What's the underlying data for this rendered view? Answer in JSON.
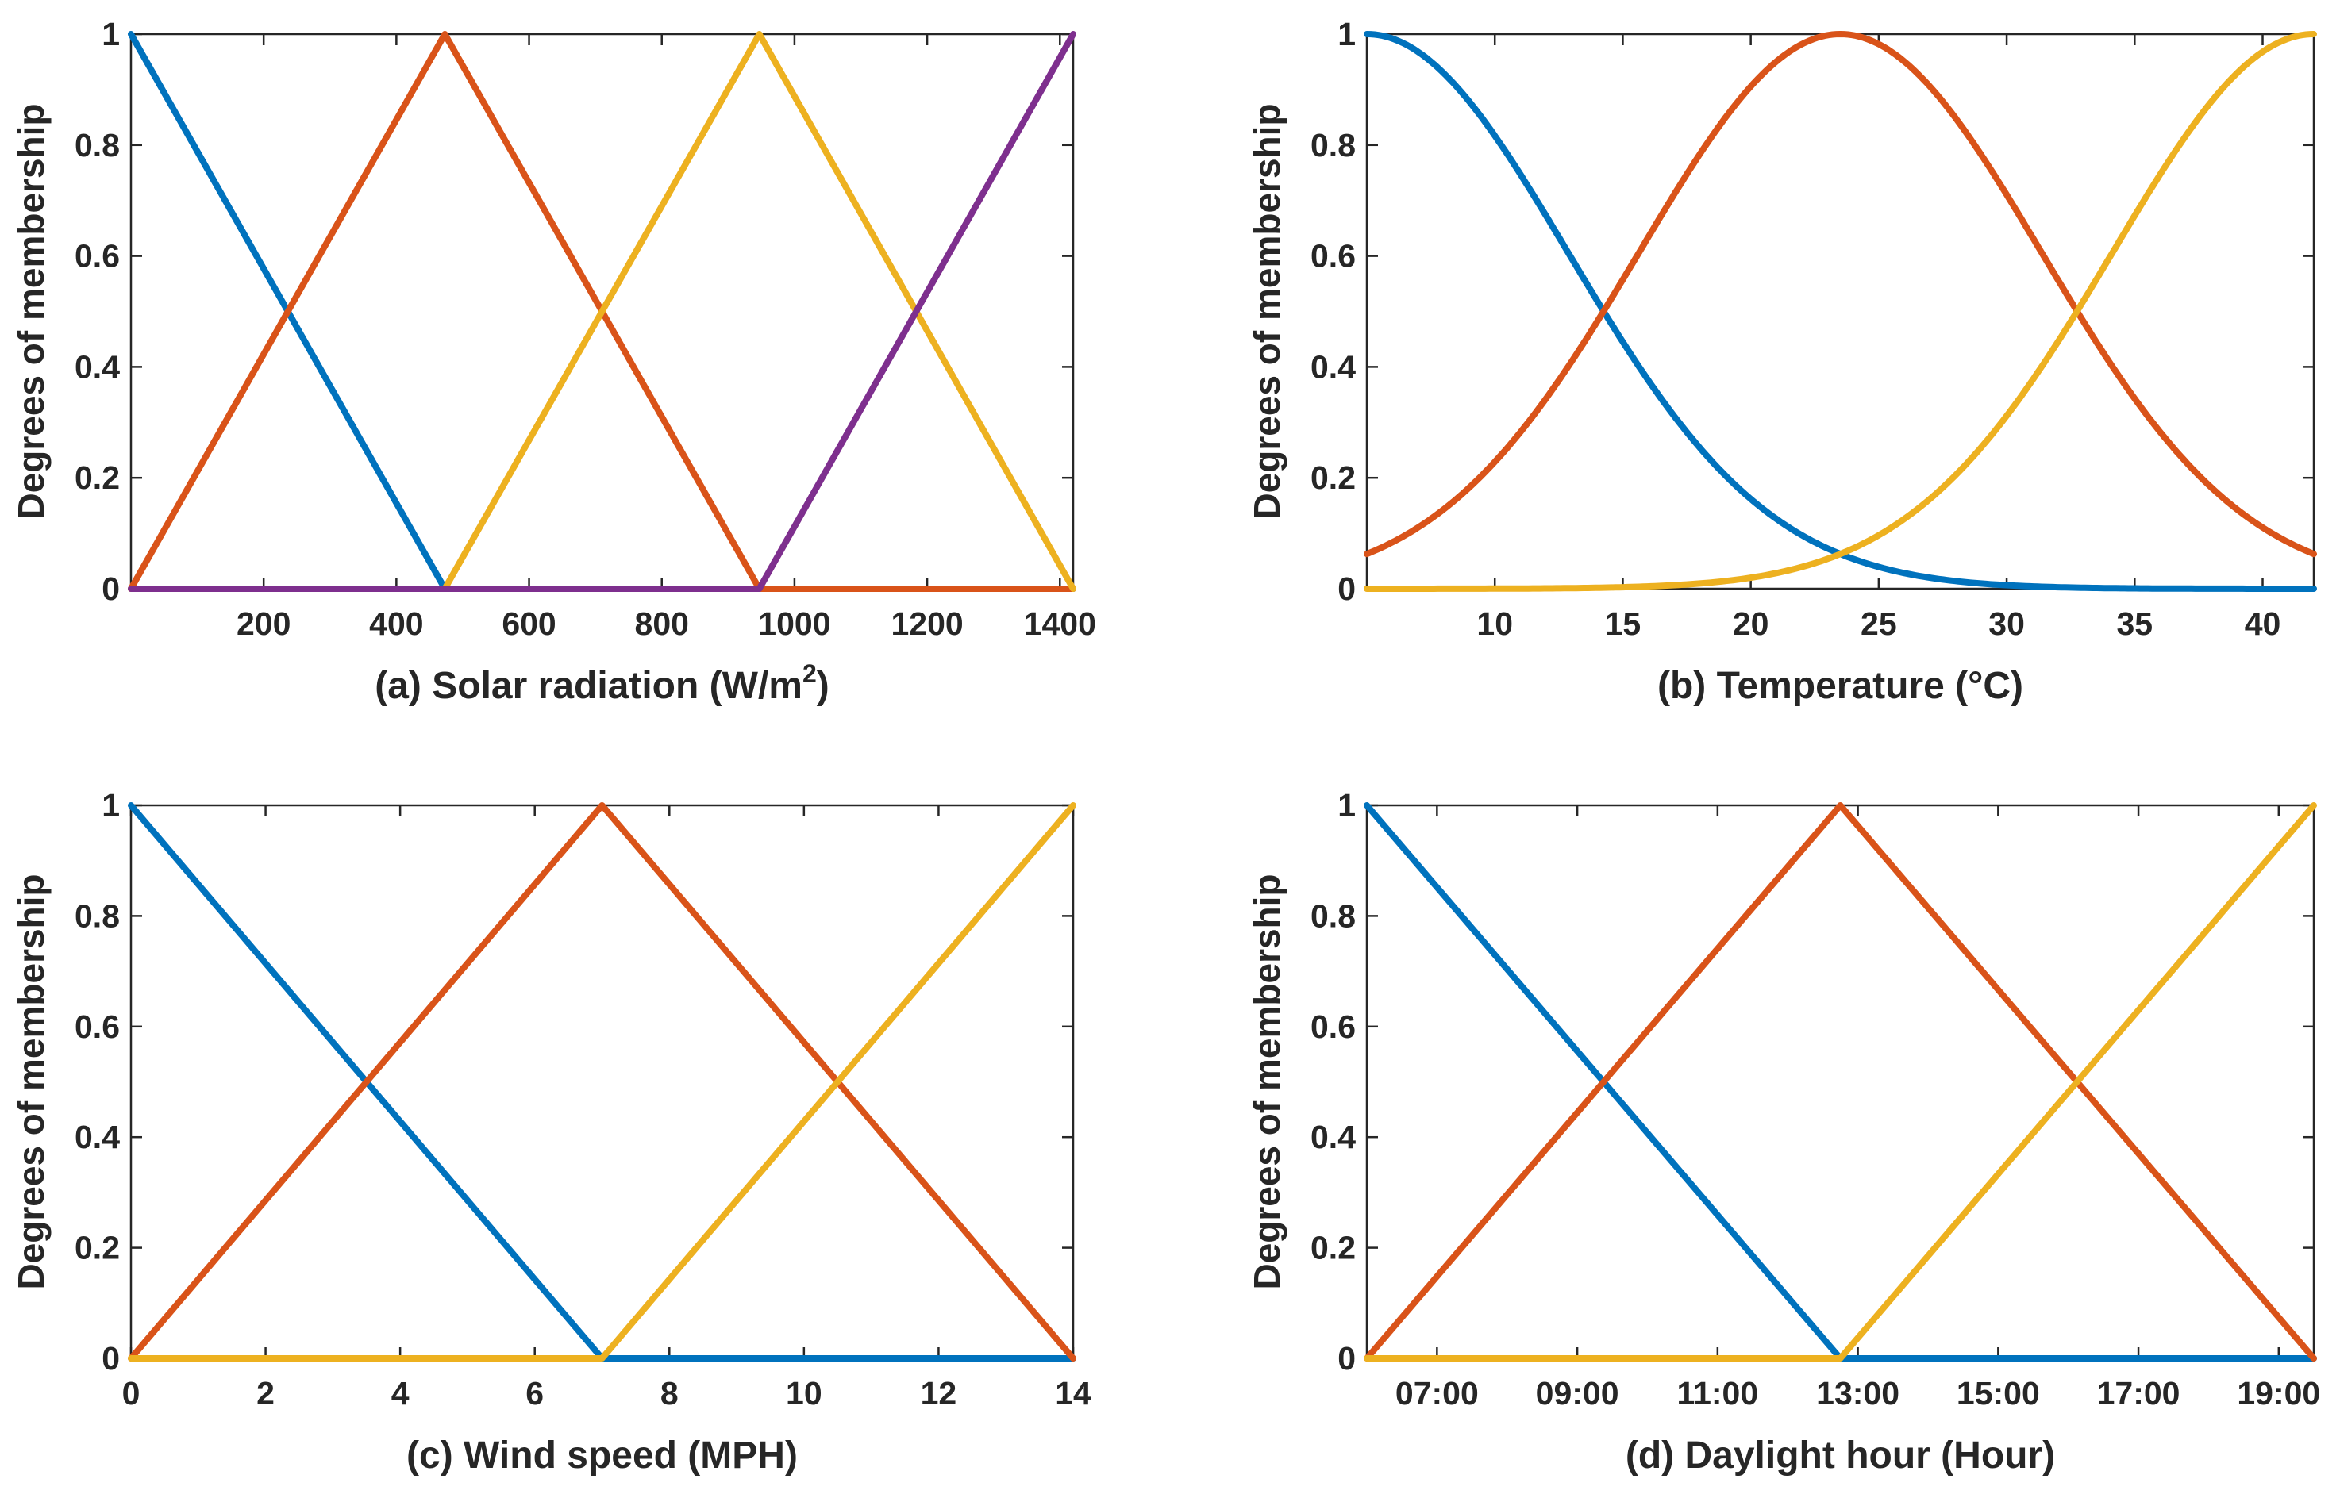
{
  "colors": {
    "mf1": "#0072BD",
    "mf2": "#D95319",
    "mf3": "#EDB120",
    "mf4": "#7E2F8E"
  },
  "ylabel": "Degrees of membership",
  "chart_data": [
    {
      "id": "a",
      "type": "line",
      "xlabel": "(a) Solar radiation (W/m",
      "xlabel_sup": "2",
      "xlabel_suffix": ")",
      "ylabel": "Degrees of membership",
      "xlim": [
        0,
        1420
      ],
      "ylim": [
        0,
        1
      ],
      "xticks": [
        200,
        400,
        600,
        800,
        1000,
        1200,
        1400
      ],
      "xtick_labels": [
        "200",
        "400",
        "600",
        "800",
        "1000",
        "1200",
        "1400"
      ],
      "yticks": [
        0,
        0.2,
        0.4,
        0.6,
        0.8,
        1
      ],
      "ytick_labels": [
        "0",
        "0.2",
        "0.4",
        "0.6",
        "0.8",
        "1"
      ],
      "series": [
        {
          "name": "mf1",
          "color": "#0072BD",
          "kind": "linear",
          "x": [
            0,
            473,
            1420
          ],
          "y": [
            1,
            0,
            0
          ]
        },
        {
          "name": "mf2",
          "color": "#D95319",
          "kind": "linear",
          "x": [
            0,
            473,
            947,
            1420
          ],
          "y": [
            0,
            1,
            0,
            0
          ]
        },
        {
          "name": "mf3",
          "color": "#EDB120",
          "kind": "linear",
          "x": [
            0,
            473,
            947,
            1420
          ],
          "y": [
            0,
            0,
            1,
            0
          ]
        },
        {
          "name": "mf4",
          "color": "#7E2F8E",
          "kind": "linear",
          "x": [
            0,
            947,
            1420
          ],
          "y": [
            0,
            0,
            1
          ]
        }
      ]
    },
    {
      "id": "b",
      "type": "line",
      "xlabel": "(b) Temperature (°C)",
      "ylabel": "Degrees of membership",
      "xlim": [
        5,
        42
      ],
      "ylim": [
        0,
        1
      ],
      "xticks": [
        10,
        15,
        20,
        25,
        30,
        35,
        40
      ],
      "xtick_labels": [
        "10",
        "15",
        "20",
        "25",
        "30",
        "35",
        "40"
      ],
      "yticks": [
        0,
        0.2,
        0.4,
        0.6,
        0.8,
        1
      ],
      "ytick_labels": [
        "0",
        "0.2",
        "0.4",
        "0.6",
        "0.8",
        "1"
      ],
      "series": [
        {
          "name": "mf1",
          "color": "#0072BD",
          "kind": "gauss",
          "center": 5,
          "sigma": 7.86
        },
        {
          "name": "mf2",
          "color": "#D95319",
          "kind": "gauss",
          "center": 23.5,
          "sigma": 7.86
        },
        {
          "name": "mf3",
          "color": "#EDB120",
          "kind": "gauss",
          "center": 42,
          "sigma": 7.86
        }
      ]
    },
    {
      "id": "c",
      "type": "line",
      "xlabel": "(c) Wind speed (MPH)",
      "ylabel": "Degrees of membership",
      "xlim": [
        0,
        14
      ],
      "ylim": [
        0,
        1
      ],
      "xticks": [
        0,
        2,
        4,
        6,
        8,
        10,
        12,
        14
      ],
      "xtick_labels": [
        "0",
        "2",
        "4",
        "6",
        "8",
        "10",
        "12",
        "14"
      ],
      "yticks": [
        0,
        0.2,
        0.4,
        0.6,
        0.8,
        1
      ],
      "ytick_labels": [
        "0",
        "0.2",
        "0.4",
        "0.6",
        "0.8",
        "1"
      ],
      "series": [
        {
          "name": "mf1",
          "color": "#0072BD",
          "kind": "linear",
          "x": [
            0,
            7,
            14
          ],
          "y": [
            1,
            0,
            0
          ]
        },
        {
          "name": "mf2",
          "color": "#D95319",
          "kind": "linear",
          "x": [
            0,
            7,
            14
          ],
          "y": [
            0,
            1,
            0
          ]
        },
        {
          "name": "mf3",
          "color": "#EDB120",
          "kind": "linear",
          "x": [
            0,
            7,
            14
          ],
          "y": [
            0,
            0,
            1
          ]
        }
      ]
    },
    {
      "id": "d",
      "type": "line",
      "xlabel": "(d) Daylight hour (Hour)",
      "ylabel": "Degrees of membership",
      "xlim": [
        6,
        19.5
      ],
      "ylim": [
        0,
        1
      ],
      "xticks": [
        7,
        9,
        11,
        13,
        15,
        17,
        19
      ],
      "xtick_labels": [
        "07:00",
        "09:00",
        "11:00",
        "13:00",
        "15:00",
        "17:00",
        "19:00"
      ],
      "yticks": [
        0,
        0.2,
        0.4,
        0.6,
        0.8,
        1
      ],
      "ytick_labels": [
        "0",
        "0.2",
        "0.4",
        "0.6",
        "0.8",
        "1"
      ],
      "series": [
        {
          "name": "mf1",
          "color": "#0072BD",
          "kind": "linear",
          "x": [
            6,
            12.75,
            19.5
          ],
          "y": [
            1,
            0,
            0
          ]
        },
        {
          "name": "mf2",
          "color": "#D95319",
          "kind": "linear",
          "x": [
            6,
            12.75,
            19.5
          ],
          "y": [
            0,
            1,
            0
          ]
        },
        {
          "name": "mf3",
          "color": "#EDB120",
          "kind": "linear",
          "x": [
            6,
            12.75,
            19.5
          ],
          "y": [
            0,
            0,
            1
          ]
        }
      ]
    }
  ]
}
